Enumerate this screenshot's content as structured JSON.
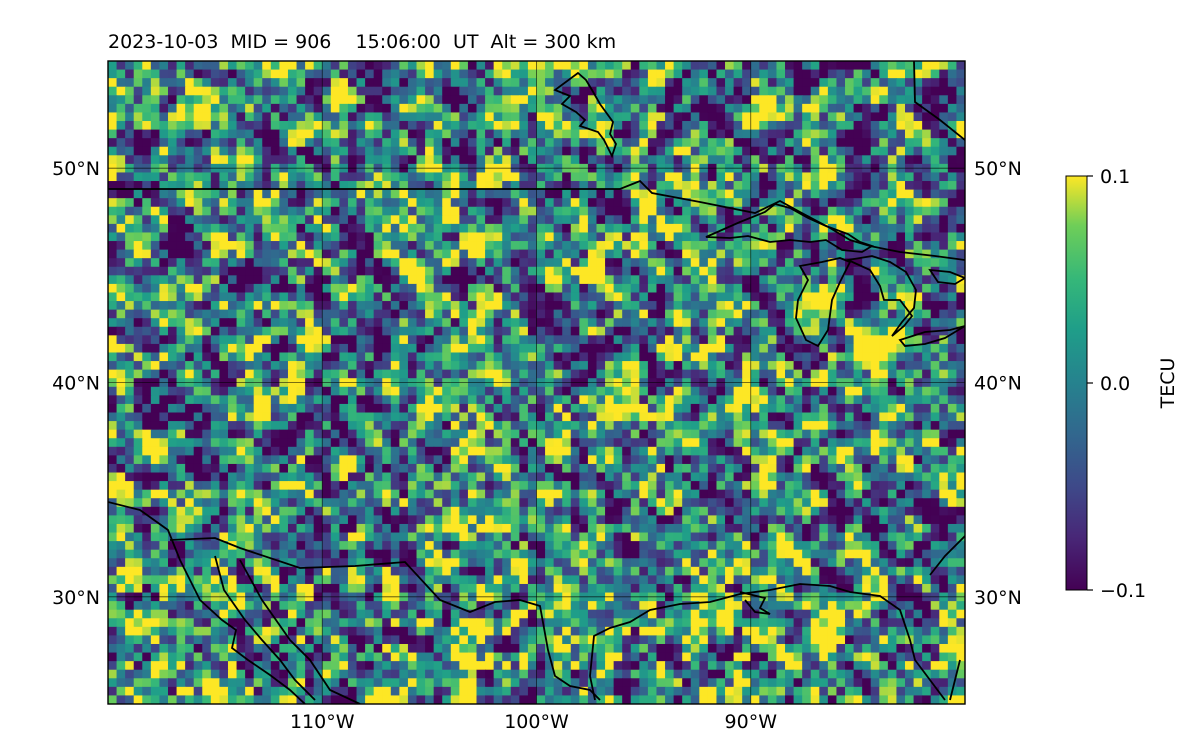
{
  "chart_data": {
    "type": "heatmap",
    "title": "2023-10-03  MID = 906    15:06:00  UT  Alt = 300 km",
    "projection": "lat-lon map (North America, Great Lakes region)",
    "lon_range": [
      -120,
      -80
    ],
    "lat_range": [
      25,
      55
    ],
    "x_ticks": [
      -110,
      -100,
      -90
    ],
    "x_tick_labels": [
      "110°W",
      "100°W",
      "90°W"
    ],
    "y_ticks": [
      30,
      40,
      50
    ],
    "y_tick_labels": [
      "30°N",
      "40°N",
      "50°N"
    ],
    "grid": true,
    "colormap": "viridis",
    "colorbar": {
      "label": "TECU",
      "vmin": -0.1,
      "vmax": 0.1,
      "ticks": [
        0.1,
        0.0,
        -0.1
      ],
      "tick_labels": [
        "0.1",
        "0.0",
        "−0.1"
      ]
    },
    "overlay": "country borders and coastlines (black lines)",
    "field_description": "noisy differential TEC field, mostly near 0 TECU with positive (yellow) patches concentrated south of ~32°N and scattered negative (purple) cells"
  },
  "colors": {
    "viridis_low": "#440154",
    "viridis_mid": "#21918c",
    "viridis_high": "#fde725",
    "border_line": "#000000"
  }
}
